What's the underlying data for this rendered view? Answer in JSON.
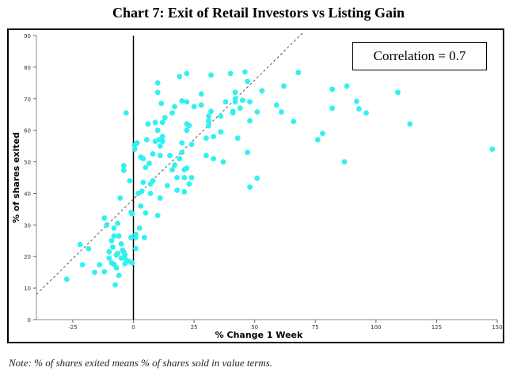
{
  "title": "Chart 7: Exit of Retail Investors vs Listing Gain",
  "note": "Note: % of shares exited means % of shares sold in value terms.",
  "annotation": "Correlation = 0.7",
  "colors": {
    "points": "#33f0f0",
    "axis_line": "#000000",
    "trend": "#555555"
  },
  "chart_data": {
    "type": "scatter",
    "title": "Chart 7: Exit of Retail Investors vs Listing Gain",
    "xlabel": "% Change 1 Week",
    "ylabel": "% of shares exited",
    "xlim": [
      -40,
      150
    ],
    "ylim": [
      0,
      90
    ],
    "xticks": [
      -25,
      0,
      25,
      50,
      75,
      100,
      125,
      150
    ],
    "xtick_labels": [
      "-25",
      "0",
      "25",
      "50",
      "75",
      "100",
      "125",
      "150"
    ],
    "yticks": [
      0,
      10,
      20,
      30,
      40,
      50,
      60,
      70,
      80,
      90
    ],
    "ytick_labels": [
      "0",
      "10",
      "20",
      "30",
      "40",
      "50",
      "60",
      "70",
      "80",
      "90"
    ],
    "zero_line_x": 0,
    "trendline": {
      "style": "dashed",
      "x": [
        -40,
        70
      ],
      "y": [
        8,
        91
      ]
    },
    "correlation": 0.7,
    "points": [
      [
        -27.5,
        12.8
      ],
      [
        -22,
        23.8
      ],
      [
        -21,
        17.4
      ],
      [
        -18.5,
        22.5
      ],
      [
        -16,
        15
      ],
      [
        -14,
        17.4
      ],
      [
        -12,
        32.2
      ],
      [
        -12,
        15.2
      ],
      [
        -11,
        30
      ],
      [
        -10,
        21.5
      ],
      [
        -10,
        19.5
      ],
      [
        -9,
        25
      ],
      [
        -9,
        18
      ],
      [
        -8.5,
        23
      ],
      [
        -8,
        29
      ],
      [
        -8,
        26.5
      ],
      [
        -8,
        17.5
      ],
      [
        -7.5,
        11
      ],
      [
        -7,
        20.5
      ],
      [
        -7,
        16.4
      ],
      [
        -6.5,
        30.5
      ],
      [
        -6.5,
        21
      ],
      [
        -6,
        26.5
      ],
      [
        -6,
        14
      ],
      [
        -5.5,
        38.5
      ],
      [
        -5,
        24
      ],
      [
        -5,
        19.5
      ],
      [
        -4.5,
        22
      ],
      [
        -4,
        21.5
      ],
      [
        -3.5,
        20.5
      ],
      [
        -3.5,
        19.4
      ],
      [
        -3.5,
        17.7
      ],
      [
        -4,
        48.8
      ],
      [
        -4,
        47.3
      ],
      [
        -3,
        65.5
      ],
      [
        -2,
        18.5
      ],
      [
        -1.5,
        44
      ],
      [
        -1,
        34
      ],
      [
        -1,
        26
      ],
      [
        -0.5,
        33.5
      ],
      [
        -0.5,
        18
      ],
      [
        0.5,
        55.2
      ],
      [
        0.5,
        54
      ],
      [
        1,
        26
      ],
      [
        1,
        22.5
      ],
      [
        1,
        27
      ],
      [
        1.5,
        56
      ],
      [
        2,
        40
      ],
      [
        2.5,
        29
      ],
      [
        3,
        51.5
      ],
      [
        3,
        36
      ],
      [
        3.5,
        40.7
      ],
      [
        4,
        51
      ],
      [
        4,
        43.5
      ],
      [
        4.5,
        26
      ],
      [
        5,
        48.2
      ],
      [
        5,
        33.8
      ],
      [
        5.5,
        57
      ],
      [
        6,
        62
      ],
      [
        6.5,
        49.5
      ],
      [
        7,
        43
      ],
      [
        7,
        40
      ],
      [
        8,
        52.5
      ],
      [
        8,
        44
      ],
      [
        9,
        62.5
      ],
      [
        9,
        56.5
      ],
      [
        10,
        75
      ],
      [
        10,
        72
      ],
      [
        10,
        60
      ],
      [
        10,
        33
      ],
      [
        10.5,
        57
      ],
      [
        11,
        55
      ],
      [
        11,
        52
      ],
      [
        11,
        38.5
      ],
      [
        11.5,
        68.5
      ],
      [
        12,
        62.5
      ],
      [
        12,
        58
      ],
      [
        12,
        56.5
      ],
      [
        13,
        64
      ],
      [
        14,
        42.5
      ],
      [
        15,
        52
      ],
      [
        16,
        65.5
      ],
      [
        16,
        47.5
      ],
      [
        17,
        67.5
      ],
      [
        17,
        49
      ],
      [
        18,
        45
      ],
      [
        18,
        41
      ],
      [
        19,
        77
      ],
      [
        19,
        51
      ],
      [
        20,
        69.3
      ],
      [
        20,
        56
      ],
      [
        20,
        53
      ],
      [
        21,
        47.5
      ],
      [
        21,
        45
      ],
      [
        21,
        40.5
      ],
      [
        22,
        78
      ],
      [
        22,
        69
      ],
      [
        22,
        62
      ],
      [
        22,
        60
      ],
      [
        22,
        48
      ],
      [
        23,
        61.5
      ],
      [
        23,
        43
      ],
      [
        24,
        55.5
      ],
      [
        24,
        45
      ],
      [
        25,
        67.5
      ],
      [
        28,
        71.5
      ],
      [
        28,
        68
      ],
      [
        30,
        57.5
      ],
      [
        30,
        52
      ],
      [
        31,
        64.5
      ],
      [
        31,
        63
      ],
      [
        31,
        61.5
      ],
      [
        32,
        77.5
      ],
      [
        32,
        66
      ],
      [
        33,
        58
      ],
      [
        33,
        51
      ],
      [
        36,
        64.5
      ],
      [
        36,
        59.5
      ],
      [
        37,
        50
      ],
      [
        38,
        69
      ],
      [
        40,
        78
      ],
      [
        41,
        66
      ],
      [
        41,
        65.5
      ],
      [
        42,
        72
      ],
      [
        42,
        70
      ],
      [
        42,
        69
      ],
      [
        43,
        57.5
      ],
      [
        44,
        67
      ],
      [
        45,
        69.5
      ],
      [
        46,
        78.5
      ],
      [
        47,
        75.5
      ],
      [
        47,
        53
      ],
      [
        48,
        69
      ],
      [
        48,
        63
      ],
      [
        48,
        42
      ],
      [
        51,
        65.8
      ],
      [
        51,
        44.8
      ],
      [
        53,
        72.5
      ],
      [
        59,
        68
      ],
      [
        61,
        65.8
      ],
      [
        62,
        74
      ],
      [
        66,
        62.8
      ],
      [
        68,
        78.3
      ],
      [
        76,
        57
      ],
      [
        78,
        59
      ],
      [
        82,
        73
      ],
      [
        82,
        67
      ],
      [
        88,
        74
      ],
      [
        87,
        50
      ],
      [
        92,
        69.2
      ],
      [
        93,
        66.8
      ],
      [
        96,
        65.5
      ],
      [
        109,
        72
      ],
      [
        114,
        62
      ],
      [
        148,
        54
      ]
    ]
  }
}
